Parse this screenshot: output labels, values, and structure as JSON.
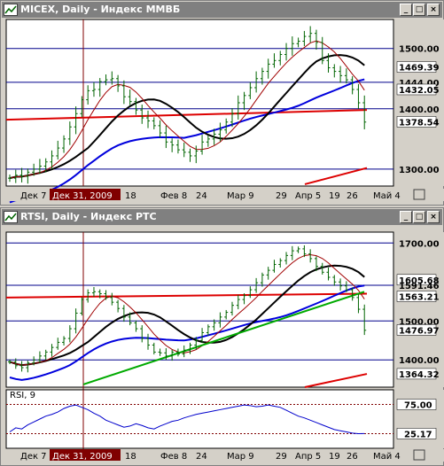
{
  "colors": {
    "chart_bg": "#ffffff",
    "frame_bg": "#d4d0c8",
    "price_bar": "#006400",
    "ma_long": "#000000",
    "ma_medium": "#0000dd",
    "ma_short": "#a00000",
    "sma200": "#dd0000",
    "hline": "#00008b",
    "trend": "#00aa00",
    "rsi_line": "#0000cc",
    "cursor_line": "#800000",
    "cursor_label_bg": "#800000"
  },
  "window1": {
    "title": "MICEX, Daily - Индекс ММВБ",
    "icon": "chart-icon",
    "buttons": [
      "_",
      "□",
      "×"
    ],
    "cursor_date": "Дек 31, 2009",
    "x_labels": [
      "Дек 7",
      "18",
      "Фев 8",
      "24",
      "Мар 9",
      "29",
      "Апр 5",
      "19",
      "26",
      "Май 4"
    ],
    "y_labels": [
      "1500.00",
      "1469.39",
      "1444.00",
      "1432.05",
      "1400.00",
      "1378.54",
      "1300.00"
    ],
    "chart_data": {
      "type": "ohlc",
      "title": "MICEX, Daily - Индекс ММВБ",
      "ylim": [
        1272,
        1548
      ],
      "horizontal_levels": [
        1500,
        1444,
        1400,
        1300
      ],
      "markers": [
        1469.39,
        1432.05,
        1378.54
      ],
      "last_close": 1378.54,
      "closes": [
        1285,
        1290,
        1288,
        1295,
        1300,
        1305,
        1312,
        1322,
        1335,
        1350,
        1370,
        1392,
        1415,
        1430,
        1432,
        1445,
        1448,
        1450,
        1438,
        1420,
        1412,
        1398,
        1385,
        1380,
        1372,
        1360,
        1345,
        1340,
        1332,
        1328,
        1322,
        1330,
        1345,
        1350,
        1358,
        1365,
        1378,
        1392,
        1410,
        1422,
        1435,
        1450,
        1462,
        1474,
        1480,
        1490,
        1500,
        1508,
        1512,
        1520,
        1525,
        1510,
        1480,
        1468,
        1462,
        1455,
        1448,
        1432,
        1410,
        1378
      ]
    }
  },
  "window2": {
    "title": "RTSI, Daily - Индекс РТС",
    "icon": "chart-icon",
    "buttons": [
      "_",
      "□",
      "×"
    ],
    "cursor_date": "Дек 31, 2009",
    "x_labels": [
      "Дек 7",
      "18",
      "Фев 8",
      "24",
      "Мар 9",
      "29",
      "Апр 5",
      "19",
      "26",
      "Май 4"
    ],
    "y_labels": [
      "1700.00",
      "1605.68",
      "1591.46",
      "1563.21",
      "1500.00",
      "1476.97",
      "1400.00",
      "1364.32"
    ],
    "rsi_title": "RSI, 9",
    "rsi_labels": [
      "75.00",
      "25.17"
    ],
    "chart_data": {
      "type": "ohlc",
      "title": "RTSI, Daily - Индекс РТС",
      "ylim": [
        1330,
        1728
      ],
      "horizontal_levels": [
        1700,
        1591.46,
        1500,
        1400
      ],
      "markers": [
        1605.68,
        1563.21,
        1476.97,
        1364.32
      ],
      "last_close": 1476.97,
      "closes": [
        1395,
        1385,
        1380,
        1392,
        1400,
        1410,
        1420,
        1432,
        1445,
        1455,
        1480,
        1520,
        1555,
        1572,
        1575,
        1570,
        1560,
        1548,
        1532,
        1510,
        1495,
        1480,
        1455,
        1438,
        1420,
        1418,
        1410,
        1420,
        1415,
        1425,
        1438,
        1450,
        1470,
        1485,
        1495,
        1510,
        1522,
        1540,
        1555,
        1565,
        1580,
        1598,
        1618,
        1630,
        1645,
        1655,
        1668,
        1680,
        1685,
        1672,
        1660,
        1640,
        1625,
        1612,
        1600,
        1590,
        1580,
        1560,
        1530,
        1476
      ],
      "rsi": [
        28,
        35,
        33,
        40,
        45,
        50,
        55,
        58,
        62,
        68,
        72,
        74,
        70,
        66,
        60,
        55,
        48,
        44,
        40,
        36,
        38,
        42,
        39,
        35,
        33,
        38,
        42,
        46,
        48,
        52,
        55,
        58,
        60,
        62,
        64,
        66,
        68,
        70,
        72,
        74,
        73,
        71,
        72,
        74,
        72,
        70,
        65,
        60,
        55,
        52,
        48,
        44,
        40,
        36,
        32,
        30,
        28,
        26,
        25,
        25.17
      ]
    }
  }
}
